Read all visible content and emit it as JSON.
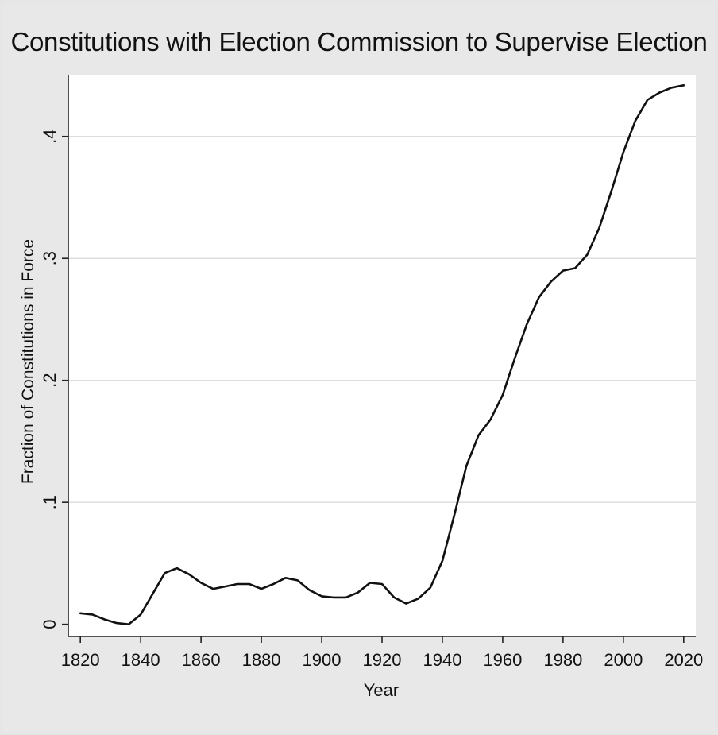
{
  "chart_data": {
    "type": "line",
    "title": "Constitutions with Election Commission to Supervise Election",
    "xlabel": "Year",
    "ylabel": "Fraction of Constitutions in Force",
    "xlim": [
      1816,
      2024
    ],
    "ylim": [
      -0.01,
      0.45
    ],
    "x_ticks": [
      1820,
      1840,
      1860,
      1880,
      1900,
      1920,
      1940,
      1960,
      1980,
      2000,
      2020
    ],
    "y_ticks": [
      0,
      0.1,
      0.2,
      0.3,
      0.4
    ],
    "y_tick_labels": [
      "0",
      ".1",
      ".2",
      ".3",
      ".4"
    ],
    "grid": "horizontal",
    "colors": {
      "line": "#111111",
      "grid": "#dddddd",
      "plot_background": "#ffffff",
      "frame_background": "#e8e8e8"
    },
    "series": [
      {
        "x": [
          1820,
          1824,
          1828,
          1832,
          1836,
          1840,
          1844,
          1848,
          1852,
          1856,
          1860,
          1864,
          1868,
          1872,
          1876,
          1880,
          1884,
          1888,
          1892,
          1896,
          1900,
          1904,
          1908,
          1912,
          1916,
          1920,
          1924,
          1928,
          1932,
          1936,
          1940,
          1944,
          1948,
          1952,
          1956,
          1960,
          1964,
          1968,
          1972,
          1976,
          1980,
          1984,
          1988,
          1992,
          1996,
          2000,
          2004,
          2008,
          2012,
          2016,
          2020
        ],
        "y": [
          0.009,
          0.008,
          0.004,
          0.001,
          0.0,
          0.008,
          0.025,
          0.042,
          0.046,
          0.041,
          0.034,
          0.029,
          0.031,
          0.033,
          0.033,
          0.029,
          0.033,
          0.038,
          0.036,
          0.028,
          0.023,
          0.022,
          0.022,
          0.026,
          0.034,
          0.033,
          0.022,
          0.017,
          0.021,
          0.03,
          0.052,
          0.09,
          0.13,
          0.155,
          0.168,
          0.188,
          0.218,
          0.246,
          0.268,
          0.281,
          0.29,
          0.292,
          0.303,
          0.325,
          0.355,
          0.387,
          0.413,
          0.43,
          0.436,
          0.44,
          0.442
        ]
      }
    ]
  }
}
